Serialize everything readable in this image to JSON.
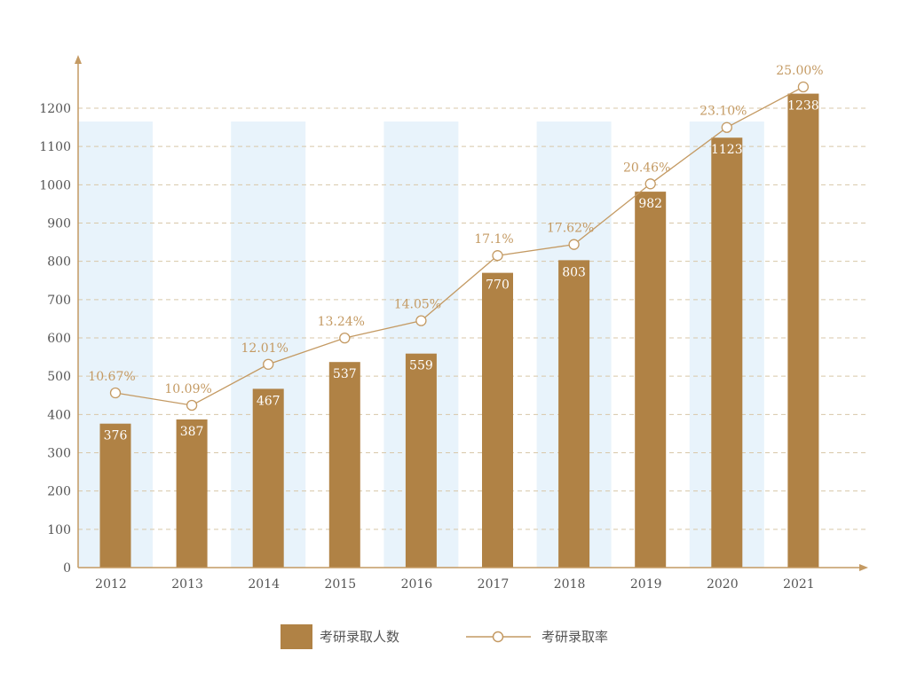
{
  "chart_data": {
    "type": "bar+line",
    "categories": [
      "2012",
      "2013",
      "2014",
      "2015",
      "2016",
      "2017",
      "2018",
      "2019",
      "2020",
      "2021"
    ],
    "y_ticks": [
      0,
      100,
      200,
      300,
      400,
      500,
      600,
      700,
      800,
      900,
      1000,
      1100,
      1200
    ],
    "ylim": [
      0,
      1200
    ],
    "grid": "horizontal dashed",
    "legend_position": "bottom",
    "series": [
      {
        "name": "考研录取人数",
        "type": "bar",
        "color": "#b08245",
        "values": [
          376,
          387,
          467,
          537,
          559,
          770,
          803,
          982,
          1123,
          1238
        ],
        "labels": [
          "376",
          "387",
          "467",
          "537",
          "559",
          "770",
          "803",
          "982",
          "1123",
          "1238"
        ]
      },
      {
        "name": "考研录取率",
        "type": "line",
        "color": "#c49a63",
        "values": [
          10.67,
          10.09,
          12.01,
          13.24,
          14.05,
          17.1,
          17.62,
          20.46,
          23.1,
          25.0
        ],
        "labels": [
          "10.67%",
          "10.09%",
          "12.01%",
          "13.24%",
          "14.05%",
          "17.1%",
          "17.62%",
          "20.46%",
          "23.10%",
          "25.00%"
        ]
      }
    ],
    "band_color": "#e8f3fb",
    "axis_color": "#c49a63"
  }
}
